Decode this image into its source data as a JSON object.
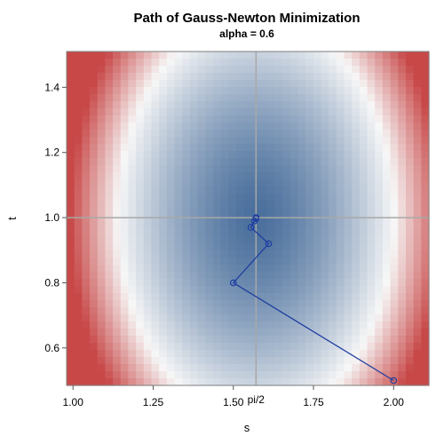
{
  "chart_data": {
    "type": "heatmap",
    "title": "Path of Gauss-Newton Minimization",
    "subtitle": "alpha = 0.6",
    "xlabel": "s",
    "ylabel": "t",
    "xlim": [
      0.98,
      2.11
    ],
    "ylim": [
      0.485,
      1.51
    ],
    "x_ticks": [
      1.0,
      1.25,
      1.5,
      1.75,
      2.0
    ],
    "x_tick_labels": [
      "1.00",
      "1.25",
      "1.50",
      "1.75",
      "2.00"
    ],
    "y_ticks": [
      0.6,
      0.8,
      1.0,
      1.2,
      1.4
    ],
    "y_tick_labels": [
      "0.6",
      "0.8",
      "1.0",
      "1.2",
      "1.4"
    ],
    "reference_lines": {
      "vertical": {
        "value": 1.5708,
        "label": "pi/2"
      },
      "horizontal": {
        "value": 1.0
      }
    },
    "heatmap": {
      "grid": [
        47,
        47
      ],
      "surface_center": [
        1.5708,
        1.0
      ],
      "colors": {
        "low": "#4a6f9c",
        "mid": "#f7f7f7",
        "high": "#c84848"
      }
    },
    "path": {
      "color": "#1f3fa0",
      "s": [
        2.0,
        1.5,
        1.61,
        1.555,
        1.566,
        1.5705,
        1.5708,
        1.5708
      ],
      "t": [
        0.5,
        0.8,
        0.92,
        0.97,
        0.99,
        0.997,
        0.9995,
        1.0
      ]
    }
  }
}
